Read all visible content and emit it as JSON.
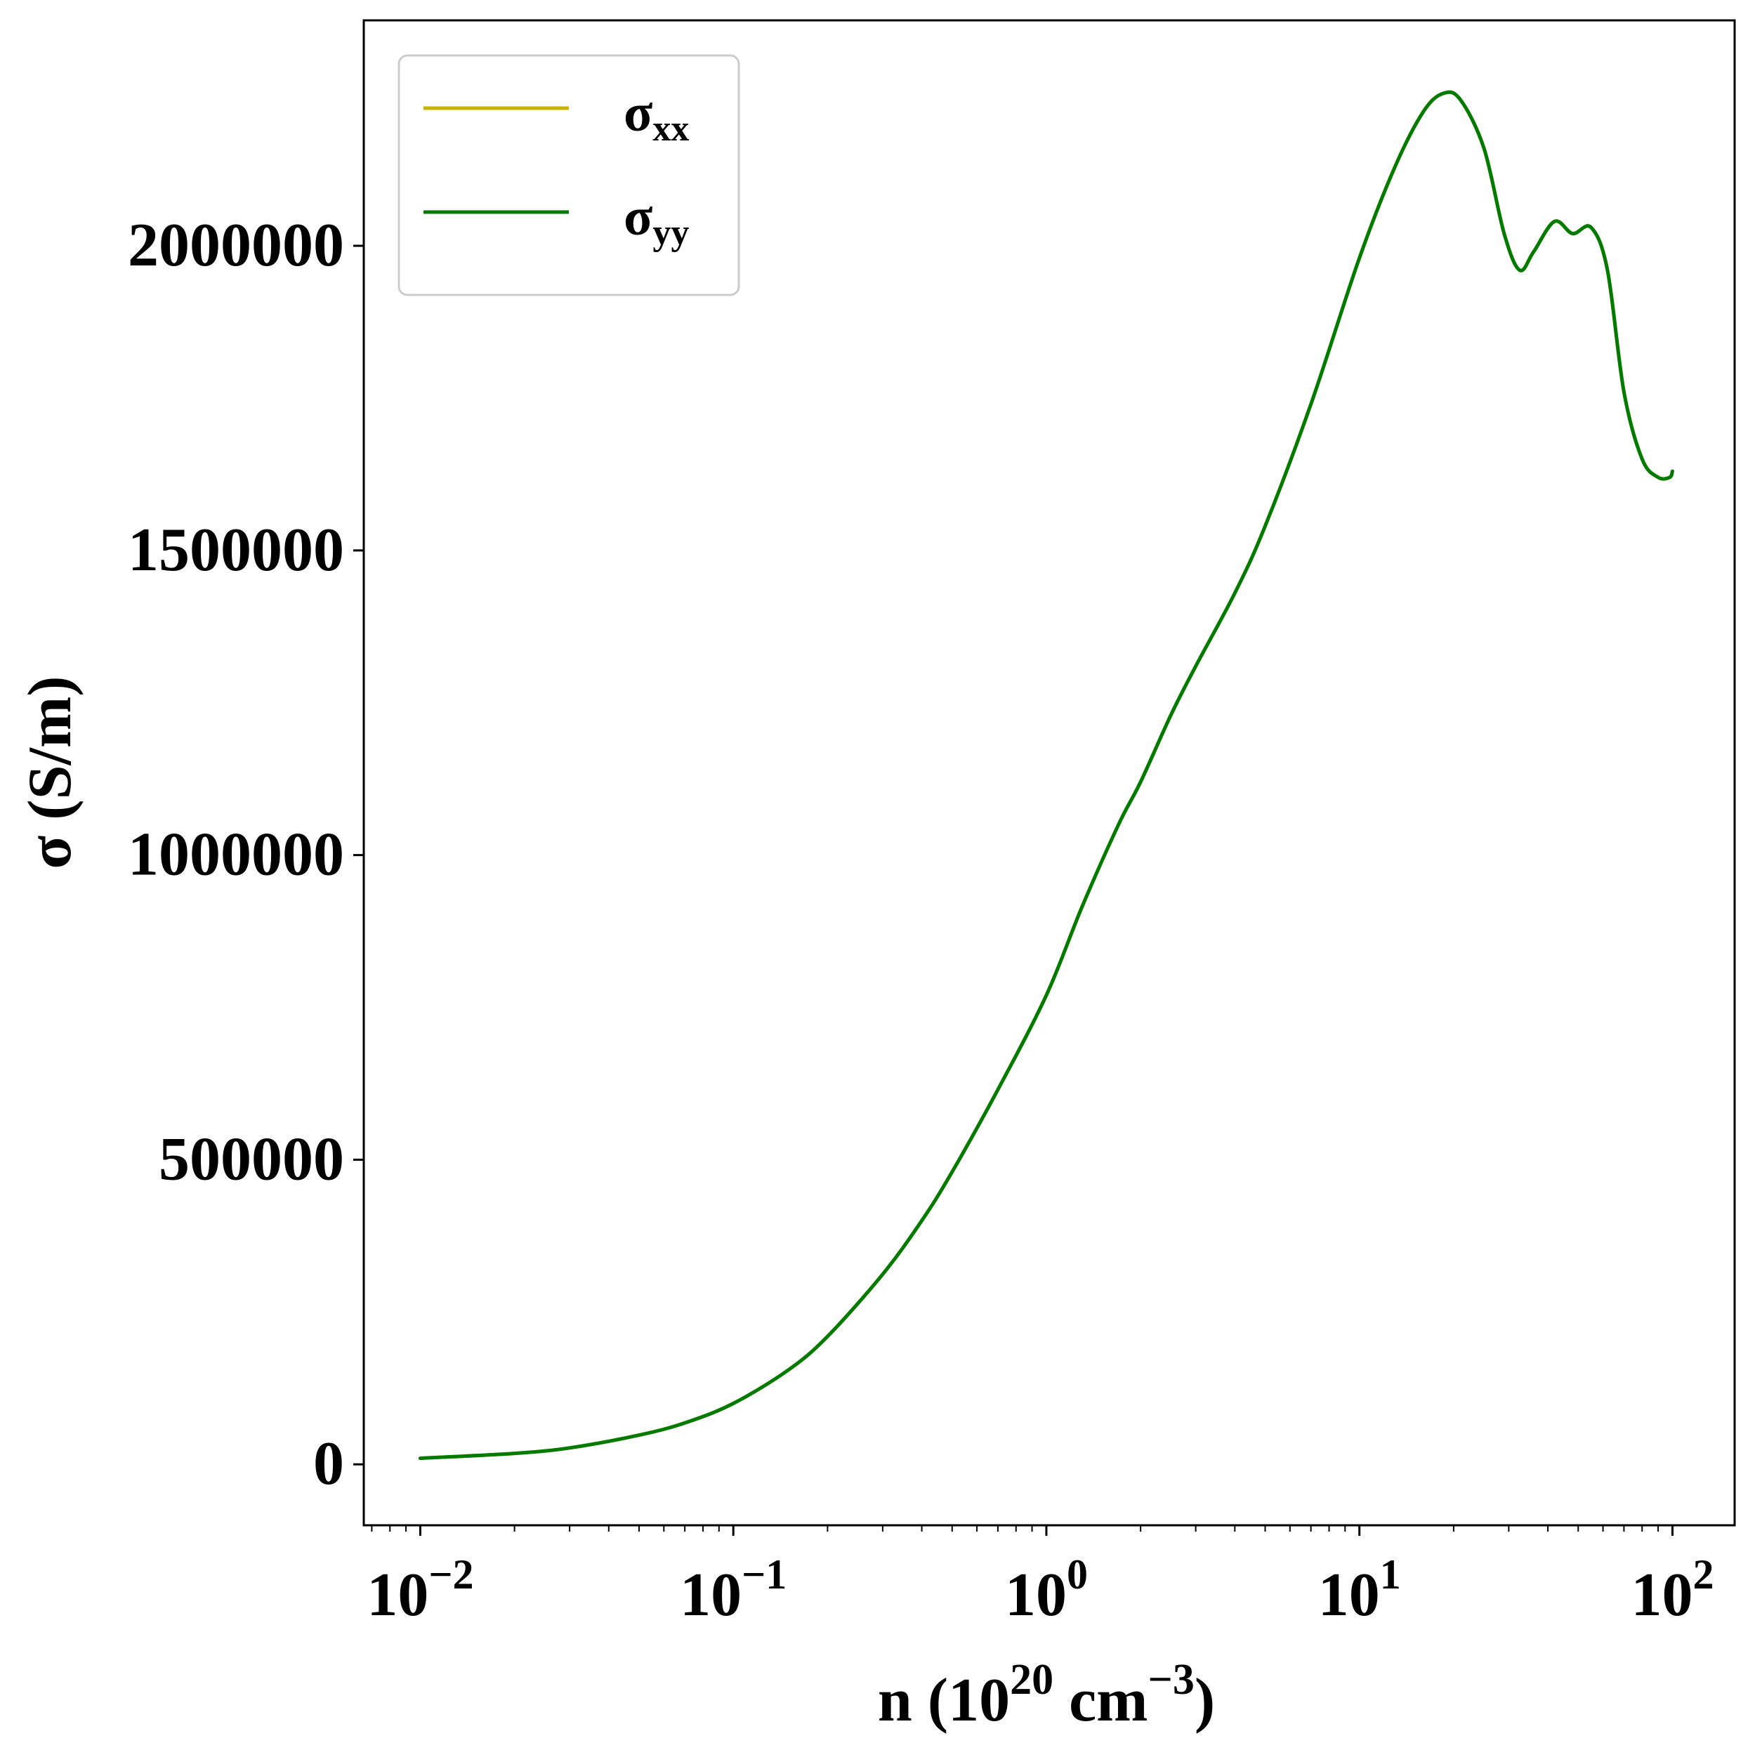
{
  "chart_data": {
    "type": "line",
    "title": "",
    "xlabel": {
      "base": "n (10",
      "sup1": "20",
      "mid": " cm",
      "sup2": "−3",
      "end": ")"
    },
    "ylabel": "σ (S/m)",
    "xscale": "log",
    "xlim": [
      0.0066,
      158
    ],
    "ylim": [
      -100000,
      2370000
    ],
    "grid": false,
    "legend_position": "upper-left",
    "x_ticks": [
      {
        "value": 0.01,
        "base": "10",
        "exp": "−2"
      },
      {
        "value": 0.1,
        "base": "10",
        "exp": "−1"
      },
      {
        "value": 1,
        "base": "10",
        "exp": "0"
      },
      {
        "value": 10,
        "base": "10",
        "exp": "1"
      },
      {
        "value": 100,
        "base": "10",
        "exp": "2"
      }
    ],
    "y_ticks": [
      {
        "value": 0,
        "label": "0"
      },
      {
        "value": 500000,
        "label": "500000"
      },
      {
        "value": 1000000,
        "label": "1000000"
      },
      {
        "value": 1500000,
        "label": "1500000"
      },
      {
        "value": 2000000,
        "label": "2000000"
      }
    ],
    "x": [
      0.01,
      0.02,
      0.03,
      0.05,
      0.07,
      0.1,
      0.15,
      0.2,
      0.3,
      0.4,
      0.5,
      0.7,
      1.0,
      1.3,
      1.7,
      2.0,
      2.5,
      3.0,
      4.0,
      5.0,
      7.0,
      10.0,
      13.0,
      16.0,
      18.5,
      21.0,
      25.0,
      29.0,
      32.5,
      36.0,
      42.0,
      48.0,
      55.0,
      62.0,
      70.0,
      80.0,
      90.0,
      98.0,
      100.0
    ],
    "series": [
      {
        "name": "σxx",
        "label_base": "σ",
        "label_sub": "xx",
        "color": "#c8b400",
        "values": [
          10000,
          18000,
          27000,
          48000,
          68000,
          100000,
          155000,
          210000,
          312000,
          400000,
          480000,
          615000,
          770000,
          915000,
          1050000,
          1120000,
          1230000,
          1310000,
          1430000,
          1540000,
          1740000,
          1980000,
          2130000,
          2220000,
          2250000,
          2240000,
          2160000,
          2020000,
          1960000,
          1990000,
          2040000,
          2020000,
          2030000,
          1960000,
          1760000,
          1650000,
          1620000,
          1620000,
          1630000
        ]
      },
      {
        "name": "σyy",
        "label_base": "σ",
        "label_sub": "yy",
        "color": "#007b00",
        "values": [
          10000,
          18000,
          27000,
          48000,
          68000,
          100000,
          155000,
          210000,
          312000,
          400000,
          480000,
          615000,
          770000,
          915000,
          1050000,
          1120000,
          1230000,
          1310000,
          1430000,
          1540000,
          1740000,
          1980000,
          2130000,
          2220000,
          2250000,
          2240000,
          2160000,
          2020000,
          1960000,
          1990000,
          2040000,
          2020000,
          2030000,
          1960000,
          1760000,
          1650000,
          1620000,
          1620000,
          1630000
        ]
      }
    ]
  }
}
